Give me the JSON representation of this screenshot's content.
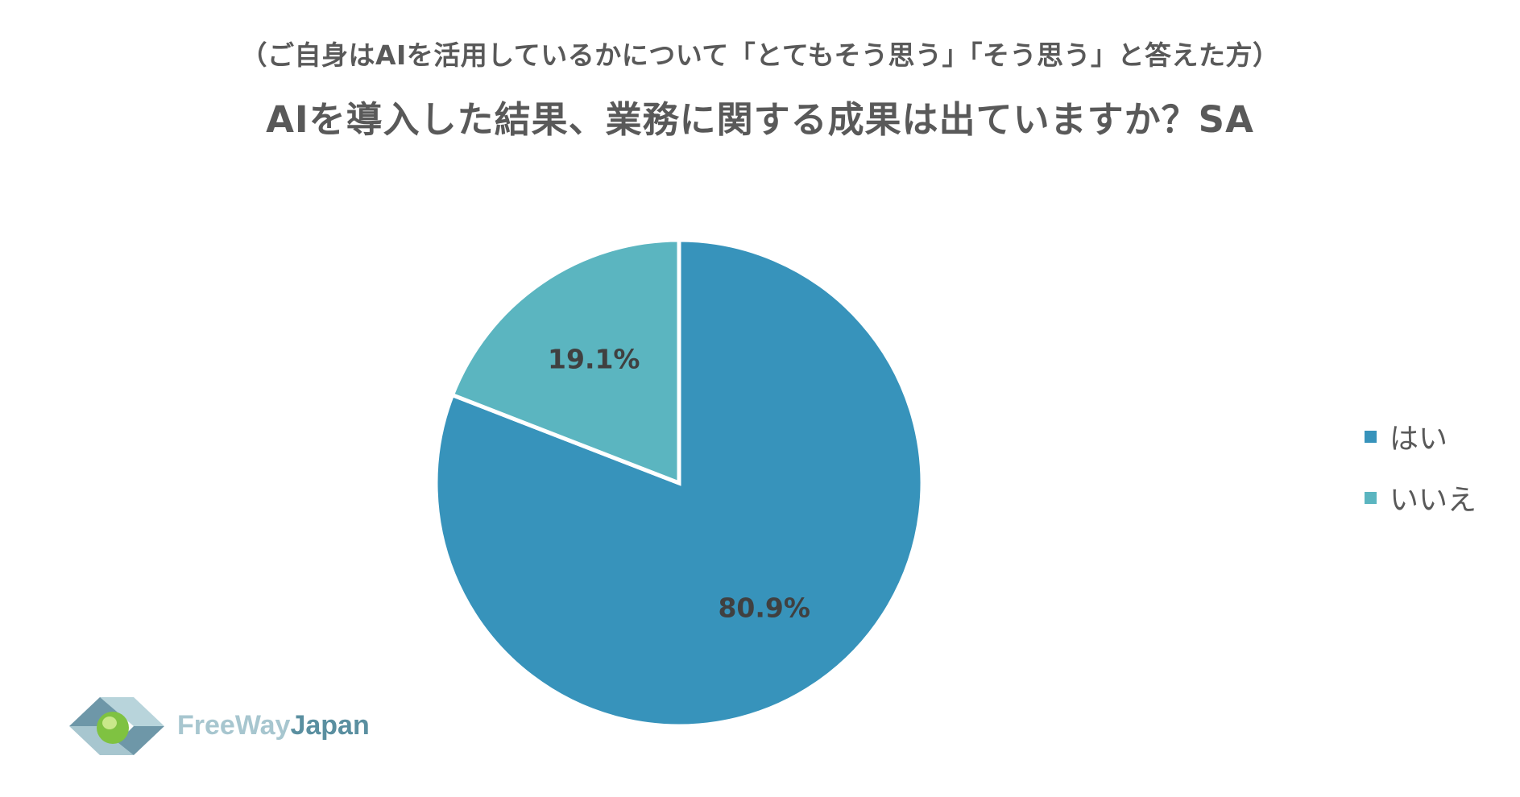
{
  "header": {
    "subtitle": "（ご自身はAIを活用しているかについて「とてもそう思う」「そう思う」と答えた方）",
    "title": "AIを導入した結果、業務に関する成果は出ていますか？SA"
  },
  "chart_data": {
    "type": "pie",
    "categories": [
      "はい",
      "いいえ"
    ],
    "values": [
      80.9,
      19.1
    ],
    "data_labels": [
      "80.9%",
      "19.1%"
    ],
    "colors": [
      "#3793bb",
      "#5bb5c0"
    ],
    "legend_position": "right",
    "start_angle": "12 o'clock, clockwise"
  },
  "logo": {
    "text_part1": "FreeWay",
    "text_part2": "Japan"
  }
}
